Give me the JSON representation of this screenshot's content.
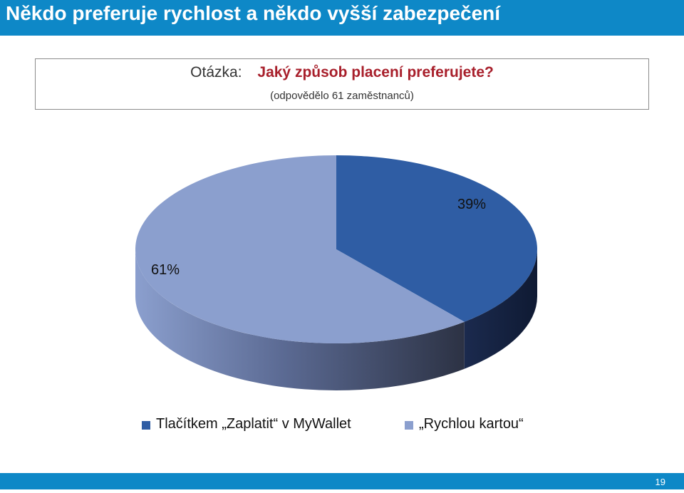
{
  "header": {
    "title": "Někdo preferuje rychlost a někdo vyšší zabezpečení"
  },
  "question": {
    "label": "Otázka:",
    "text": "Jaký způsob placení preferujete?",
    "subtitle": "(odpovědělo 61 zaměstnanců)"
  },
  "chart_data": {
    "type": "pie",
    "categories": [
      "Tlačítkem „Zaplatit“ v MyWallet",
      "„Rychlou kartou“"
    ],
    "values": [
      39,
      61
    ],
    "labels": [
      "39%",
      "61%"
    ],
    "colors": [
      "#2f5da4",
      "#8b9fce"
    ],
    "legend_position": "bottom"
  },
  "footer": {
    "page": "19"
  }
}
